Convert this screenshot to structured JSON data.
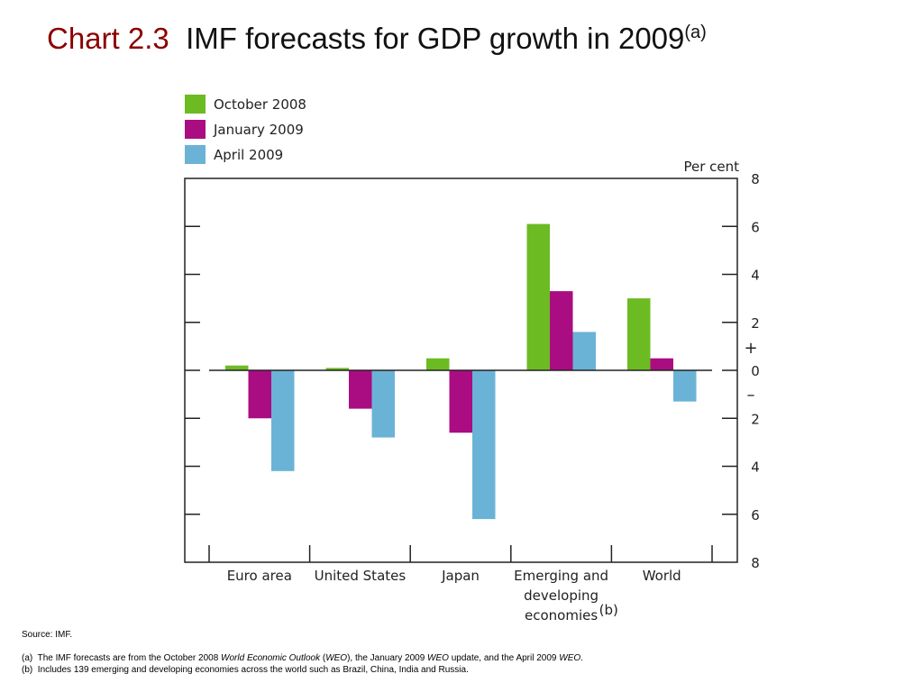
{
  "slide": {
    "title_label": "Chart 2.3",
    "title_text": "IMF forecasts for GDP growth in 2009",
    "title_sup": "(a)"
  },
  "chart_data": {
    "type": "bar",
    "title": "",
    "unit_label": "Per cent",
    "categories": [
      "Euro area",
      "United States",
      "Japan",
      "Emerging and developing economies",
      "World"
    ],
    "category_label_lines": [
      [
        "Euro area"
      ],
      [
        "United States"
      ],
      [
        "Japan"
      ],
      [
        "Emerging and",
        "developing",
        "economies"
      ],
      [
        "World"
      ]
    ],
    "category_footnotes": [
      "",
      "",
      "",
      "(b)",
      ""
    ],
    "series": [
      {
        "name": "October 2008",
        "color": "#6CBB23",
        "values": [
          0.2,
          0.1,
          0.5,
          6.1,
          3.0
        ]
      },
      {
        "name": "January 2009",
        "color": "#AA0C82",
        "values": [
          -2.0,
          -1.6,
          -2.6,
          3.3,
          0.5
        ]
      },
      {
        "name": "April 2009",
        "color": "#6BB3D6",
        "values": [
          -4.2,
          -2.8,
          -6.2,
          1.6,
          -1.3
        ]
      }
    ],
    "ylim": [
      -8,
      8
    ],
    "yticks": [
      8,
      6,
      4,
      2,
      0,
      -2,
      -4,
      -6,
      -8
    ],
    "ytick_labels": [
      "8",
      "6",
      "4",
      "2",
      "0",
      "2",
      "4",
      "6",
      "8"
    ],
    "sign_markers": {
      "positive": "+",
      "negative": "–"
    },
    "legend_position": "top-left",
    "grid": false
  },
  "notes": {
    "source": "Source: IMF.",
    "a_marker": "(a)",
    "a_text_1": "The IMF forecasts are from the October 2008 ",
    "a_italic_1": "World Economic Outlook",
    "a_text_2": " (",
    "a_italic_2": "WEO",
    "a_text_3": "), the January 2009 ",
    "a_italic_3": "WEO",
    "a_text_4": " update, and the April 2009 ",
    "a_italic_4": "WEO",
    "a_text_5": ".",
    "b_marker": "(b)",
    "b_text": "Includes 139 emerging and developing economies across the world such as Brazil, China, India and Russia."
  }
}
